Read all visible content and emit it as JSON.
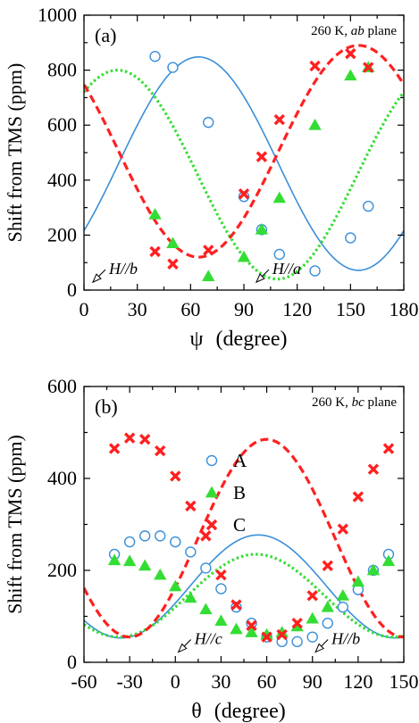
{
  "chart_data": [
    {
      "id": "a",
      "type": "scatter",
      "panel_label": "(a)",
      "annotation": {
        "temp": "260 K,",
        "plane_italic": "ab",
        "plane": "plane"
      },
      "xlabel": {
        "symbol": "ψ",
        "unit": "(degree)"
      },
      "ylabel": "Shift from TMS   (ppm)",
      "xlim": [
        0,
        180
      ],
      "ylim": [
        0,
        1000
      ],
      "xticks": [
        0,
        30,
        60,
        90,
        120,
        150,
        180
      ],
      "yticks": [
        0,
        200,
        400,
        600,
        800,
        1000
      ],
      "xtick_labels": [
        "0",
        "30",
        "60",
        "90",
        "120",
        "150",
        "180"
      ],
      "ytick_labels": [
        "0",
        "200",
        "400",
        "600",
        "800",
        "1000"
      ],
      "field_labels": [
        {
          "text": "H//b",
          "x": 5,
          "y": 45
        },
        {
          "text": "H//a",
          "x": 97,
          "y": 45
        }
      ],
      "series": [
        {
          "marker": "circle",
          "color": "#3a8fd9",
          "line": "solid",
          "fit": {
            "a": 460,
            "b": 388,
            "phi": 2.25
          },
          "points": [
            [
              40,
              850
            ],
            [
              50,
              810
            ],
            [
              70,
              610
            ],
            [
              90,
              340
            ],
            [
              100,
              220
            ],
            [
              110,
              130
            ],
            [
              130,
              70
            ],
            [
              150,
              190
            ],
            [
              160,
              305
            ]
          ]
        },
        {
          "marker": "triangle",
          "color": "#33dd33",
          "line": "dotted",
          "fit": {
            "a": 420,
            "b": 380,
            "phi": 0.66
          },
          "points": [
            [
              40,
              275
            ],
            [
              50,
              170
            ],
            [
              70,
              50
            ],
            [
              90,
              120
            ],
            [
              100,
              220
            ],
            [
              110,
              335
            ],
            [
              130,
              600
            ],
            [
              150,
              780
            ],
            [
              160,
              810
            ]
          ]
        },
        {
          "marker": "x",
          "color": "#ff2020",
          "line": "dashed",
          "fit": {
            "a": 505,
            "b": 385,
            "phi": -0.89
          },
          "points": [
            [
              40,
              140
            ],
            [
              50,
              95
            ],
            [
              70,
              145
            ],
            [
              90,
              350
            ],
            [
              100,
              485
            ],
            [
              110,
              620
            ],
            [
              130,
              815
            ],
            [
              150,
              860
            ],
            [
              160,
              810
            ]
          ]
        }
      ]
    },
    {
      "id": "b",
      "type": "scatter",
      "panel_label": "(b)",
      "annotation": {
        "temp": "260 K,",
        "plane_italic": "bc",
        "plane": "plane"
      },
      "xlabel": {
        "symbol": "θ",
        "unit": "(degree)"
      },
      "ylabel": "Shift from TMS   (ppm)",
      "xlim": [
        -60,
        150
      ],
      "ylim": [
        0,
        600
      ],
      "xticks": [
        -60,
        -30,
        0,
        30,
        60,
        90,
        120,
        150
      ],
      "yticks": [
        0,
        200,
        400,
        600
      ],
      "xtick_labels": [
        "-60",
        "-30",
        "0",
        "30",
        "60",
        "90",
        "120",
        "150"
      ],
      "ytick_labels": [
        "0",
        "200",
        "400",
        "600"
      ],
      "field_labels": [
        {
          "text": "H//c",
          "x": 2,
          "y": 32
        },
        {
          "text": "H//b",
          "x": 92,
          "y": 32
        }
      ],
      "legend": [
        {
          "label": "A",
          "marker": "circle",
          "color": "#3a8fd9"
        },
        {
          "label": "B",
          "marker": "triangle",
          "color": "#33dd33"
        },
        {
          "label": "C",
          "marker": "x",
          "color": "#ff2020"
        }
      ],
      "series": [
        {
          "name": "A",
          "marker": "circle",
          "color": "#3a8fd9",
          "line": "solid",
          "fit": {
            "a": 165,
            "b": 112,
            "phi": 1.9
          },
          "points": [
            [
              -40,
              235
            ],
            [
              -30,
              262
            ],
            [
              -20,
              275
            ],
            [
              -10,
              275
            ],
            [
              0,
              262
            ],
            [
              10,
              240
            ],
            [
              20,
              205
            ],
            [
              30,
              160
            ],
            [
              40,
              120
            ],
            [
              50,
              85
            ],
            [
              60,
              55
            ],
            [
              70,
              45
            ],
            [
              80,
              45
            ],
            [
              90,
              55
            ],
            [
              100,
              85
            ],
            [
              110,
              120
            ],
            [
              120,
              158
            ],
            [
              130,
              200
            ],
            [
              140,
              235
            ]
          ]
        },
        {
          "name": "B",
          "marker": "triangle",
          "color": "#33dd33",
          "line": "dotted",
          "fit": {
            "a": 145,
            "b": 90,
            "phi": 1.85
          },
          "points": [
            [
              -40,
              222
            ],
            [
              -30,
              220
            ],
            [
              -20,
              210
            ],
            [
              -10,
              190
            ],
            [
              0,
              165
            ],
            [
              10,
              140
            ],
            [
              20,
              115
            ],
            [
              30,
              90
            ],
            [
              40,
              72
            ],
            [
              50,
              65
            ],
            [
              60,
              60
            ],
            [
              70,
              65
            ],
            [
              80,
              78
            ],
            [
              90,
              95
            ],
            [
              100,
              120
            ],
            [
              110,
              145
            ],
            [
              120,
              175
            ],
            [
              130,
              200
            ],
            [
              140,
              220
            ]
          ]
        },
        {
          "name": "C",
          "marker": "x",
          "color": "#ff2020",
          "line": "dashed",
          "fit": {
            "a": 270,
            "b": 215,
            "phi": 2.09
          },
          "points": [
            [
              -40,
              465
            ],
            [
              -30,
              488
            ],
            [
              -20,
              485
            ],
            [
              -10,
              460
            ],
            [
              0,
              405
            ],
            [
              10,
              340
            ],
            [
              20,
              275
            ],
            [
              30,
              190
            ],
            [
              40,
              125
            ],
            [
              50,
              80
            ],
            [
              60,
              55
            ],
            [
              70,
              60
            ],
            [
              80,
              85
            ],
            [
              90,
              145
            ],
            [
              100,
              210
            ],
            [
              110,
              290
            ],
            [
              120,
              360
            ],
            [
              130,
              420
            ],
            [
              140,
              465
            ]
          ]
        }
      ]
    }
  ]
}
